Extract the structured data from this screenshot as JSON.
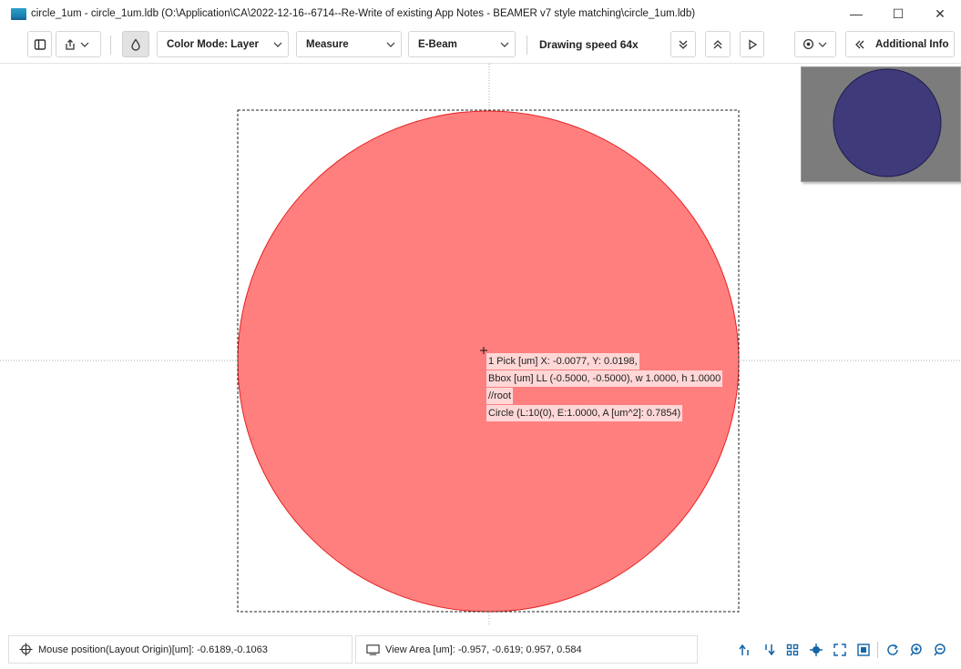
{
  "window": {
    "title": "circle_1um - circle_1um.ldb (O:\\Application\\CA\\2022-12-16--6714--Re-Write of existing App Notes - BEAMER v7 style matching\\circle_1um.ldb)",
    "controls": {
      "minimize": "—",
      "maximize": "☐",
      "close": "✕"
    }
  },
  "toolbar": {
    "color_mode": "Color Mode: Layer",
    "measure": "Measure",
    "beam": "E-Beam",
    "drawing_speed": "Drawing speed 64x",
    "additional_info": "Additional Info",
    "icons": [
      "panel-toggle-icon",
      "export-icon",
      "fill-drop-icon",
      "double-chevron-down-icon",
      "double-chevron-up-icon",
      "play-icon",
      "settings-icon",
      "double-chevron-left-icon"
    ]
  },
  "canvas": {
    "shape_fill": "#ff7f7f",
    "shape_stroke": "#e52222",
    "minimap_shape_fill": "#3f3b7b",
    "minimap_bg": "#7c7c7c"
  },
  "pick_info": {
    "line1": "1 Pick [um] X: -0.0077, Y: 0.0198,",
    "line2": "Bbox [um] LL (-0.5000, -0.5000), w 1.0000, h 1.0000",
    "line3": "//root",
    "line4": "Circle (L:10(0), E:1.0000, A [um^2]: 0.7854)"
  },
  "status": {
    "mouse_position": "Mouse position(Layout Origin)[um]: -0.6189,-0.1063",
    "view_area": "View Area [um]: -0.957, -0.619; 0.957, 0.584",
    "accent_color": "#1565a8"
  }
}
